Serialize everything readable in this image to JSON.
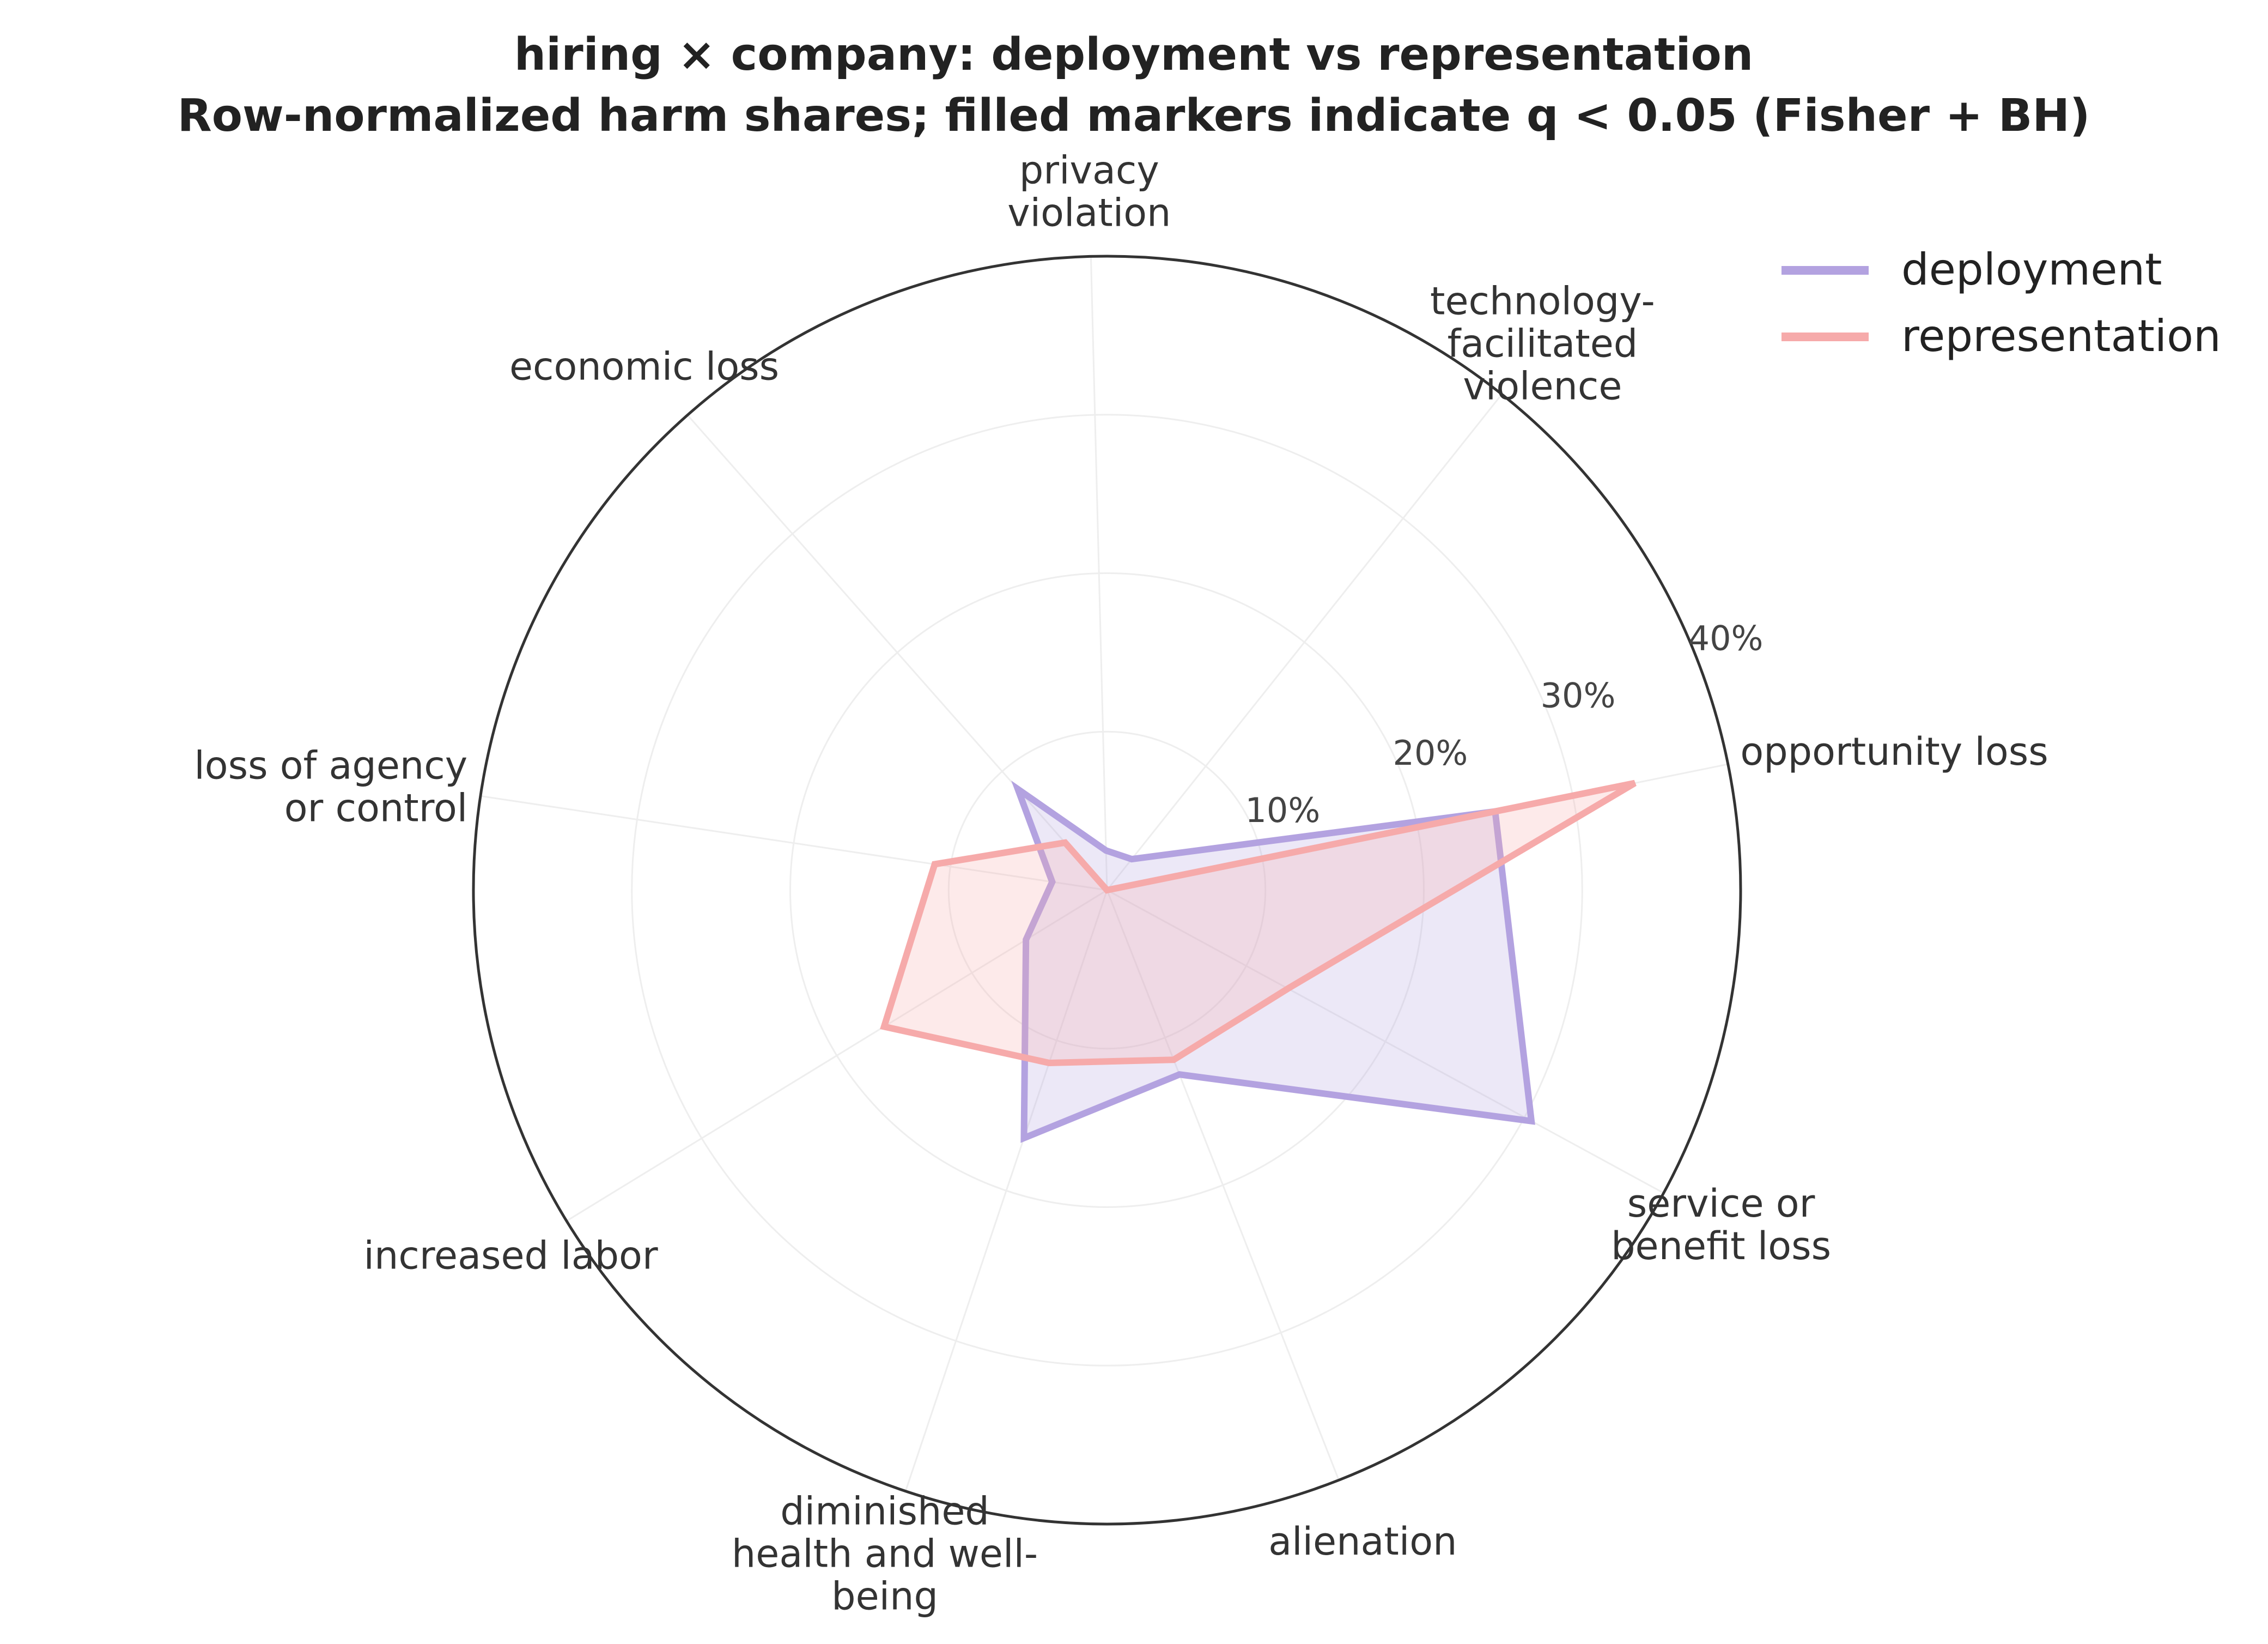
{
  "chart_data": {
    "type": "radar",
    "title_lines": [
      "hiring × company: deployment vs representation",
      "Row-normalized harm shares; filled markers indicate q < 0.05 (Fisher + BH)"
    ],
    "categories": [
      {
        "lines": [
          "opportunity loss"
        ]
      },
      {
        "lines": [
          "service or",
          "benefit loss"
        ]
      },
      {
        "lines": [
          "alienation"
        ]
      },
      {
        "lines": [
          "diminished",
          "health and well-",
          "being"
        ]
      },
      {
        "lines": [
          "increased labor"
        ]
      },
      {
        "lines": [
          "loss of agency",
          "or control"
        ]
      },
      {
        "lines": [
          "economic loss"
        ]
      },
      {
        "lines": [
          "privacy",
          "violation"
        ]
      },
      {
        "lines": [
          "technology-",
          "facilitated",
          "violence"
        ]
      }
    ],
    "series": [
      {
        "name": "deployment",
        "color": "#b3a2e0",
        "fill": "#b3a2e0",
        "values": [
          25,
          30.5,
          12.5,
          16.5,
          6,
          3.5,
          8.5,
          2.5,
          2.5
        ]
      },
      {
        "name": "representation",
        "color": "#f6aaaa",
        "fill": "#f6aaaa",
        "values": [
          34,
          13.0,
          11.5,
          11.5,
          16.5,
          11.0,
          4.0,
          0,
          0
        ]
      }
    ],
    "rlim": [
      0,
      40
    ],
    "rticks": [
      10,
      20,
      30,
      40
    ],
    "rtick_labels": [
      "10%",
      "20%",
      "30%",
      "40%"
    ],
    "grid": true,
    "legend_position": "top-right"
  }
}
